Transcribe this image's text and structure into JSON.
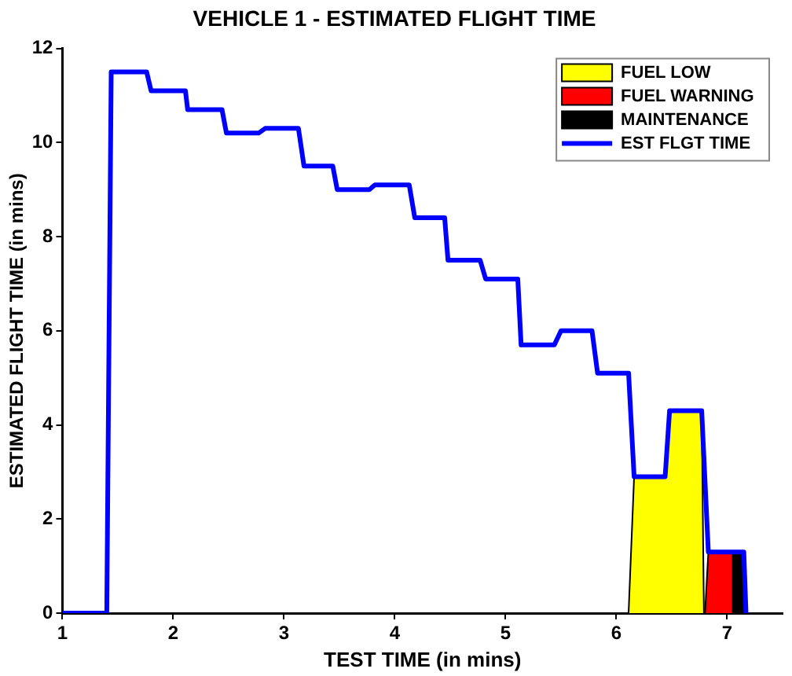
{
  "chart_data": {
    "type": "line",
    "title": "VEHICLE 1 - ESTIMATED FLIGHT TIME",
    "xlabel": "TEST TIME (in mins)",
    "ylabel": "ESTIMATED FLIGHT TIME (in mins)",
    "xlim": [
      1,
      7.5
    ],
    "xticks": [
      1,
      2,
      3,
      4,
      5,
      6,
      7
    ],
    "ylim": [
      0,
      12
    ],
    "yticks": [
      0,
      2,
      4,
      6,
      8,
      10,
      12
    ],
    "legend": "top right",
    "grid": false,
    "marker": "none",
    "series": [
      {
        "name": "FUEL LOW",
        "type": "area",
        "color": "#ffff00",
        "x": [
          6.11,
          6.16,
          6.44,
          6.48,
          6.77,
          6.79
        ],
        "values": [
          0,
          2.9,
          2.9,
          4.3,
          4.3,
          0
        ]
      },
      {
        "name": "FUEL WARNING",
        "type": "area",
        "color": "#ff0000",
        "x": [
          6.8,
          6.83,
          7.05,
          7.05
        ],
        "values": [
          0,
          1.3,
          1.3,
          0
        ]
      },
      {
        "name": "MAINTENANCE",
        "type": "area",
        "color": "#000000",
        "x": [
          7.05,
          7.05,
          7.15,
          7.17
        ],
        "values": [
          0,
          1.3,
          1.3,
          0
        ]
      },
      {
        "name": "EST FLGT TIME",
        "type": "line",
        "color": "#0000ff",
        "x": [
          1,
          1.4,
          1.44,
          1.76,
          1.8,
          2.11,
          2.13,
          2.44,
          2.48,
          2.77,
          2.83,
          3.13,
          3.18,
          3.44,
          3.48,
          3.77,
          3.82,
          4.13,
          4.18,
          4.45,
          4.48,
          4.77,
          4.82,
          5.11,
          5.14,
          5.44,
          5.5,
          5.78,
          5.83,
          6.11,
          6.16,
          6.44,
          6.48,
          6.77,
          6.83,
          7.15,
          7.17
        ],
        "values": [
          0,
          0,
          11.5,
          11.5,
          11.1,
          11.1,
          10.7,
          10.7,
          10.2,
          10.2,
          10.3,
          10.3,
          9.5,
          9.5,
          9.0,
          9.0,
          9.1,
          9.1,
          8.4,
          8.4,
          7.5,
          7.5,
          7.1,
          7.1,
          5.7,
          5.7,
          6.0,
          6.0,
          5.1,
          5.1,
          2.9,
          2.9,
          4.3,
          4.3,
          1.3,
          1.3,
          0
        ]
      }
    ]
  }
}
